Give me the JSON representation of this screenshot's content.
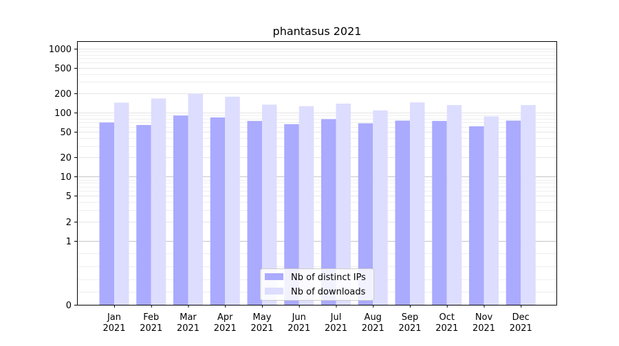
{
  "chart_data": {
    "type": "bar",
    "title": "phantasus 2021",
    "xlabel": "",
    "ylabel": "",
    "yscale": "symlog",
    "ylim": [
      0,
      1300
    ],
    "yticks": [
      0,
      1,
      2,
      5,
      10,
      20,
      50,
      100,
      200,
      500,
      1000
    ],
    "ytick_labels": [
      "0",
      "1",
      "2",
      "5",
      "10",
      "20",
      "50",
      "100",
      "200",
      "500",
      "1000"
    ],
    "categories": [
      [
        "Jan",
        "2021"
      ],
      [
        "Feb",
        "2021"
      ],
      [
        "Mar",
        "2021"
      ],
      [
        "Apr",
        "2021"
      ],
      [
        "May",
        "2021"
      ],
      [
        "Jun",
        "2021"
      ],
      [
        "Jul",
        "2021"
      ],
      [
        "Aug",
        "2021"
      ],
      [
        "Sep",
        "2021"
      ],
      [
        "Oct",
        "2021"
      ],
      [
        "Nov",
        "2021"
      ],
      [
        "Dec",
        "2021"
      ]
    ],
    "series": [
      {
        "name": "Nb of distinct IPs",
        "color": "#aaaaff",
        "values": [
          70,
          64,
          90,
          84,
          74,
          66,
          79,
          68,
          75,
          74,
          61,
          75
        ]
      },
      {
        "name": "Nb of downloads",
        "color": "#ddddff",
        "values": [
          143,
          166,
          197,
          177,
          133,
          126,
          138,
          108,
          144,
          131,
          87,
          131
        ]
      }
    ],
    "grid": true,
    "legend_position": "bottom-center"
  }
}
